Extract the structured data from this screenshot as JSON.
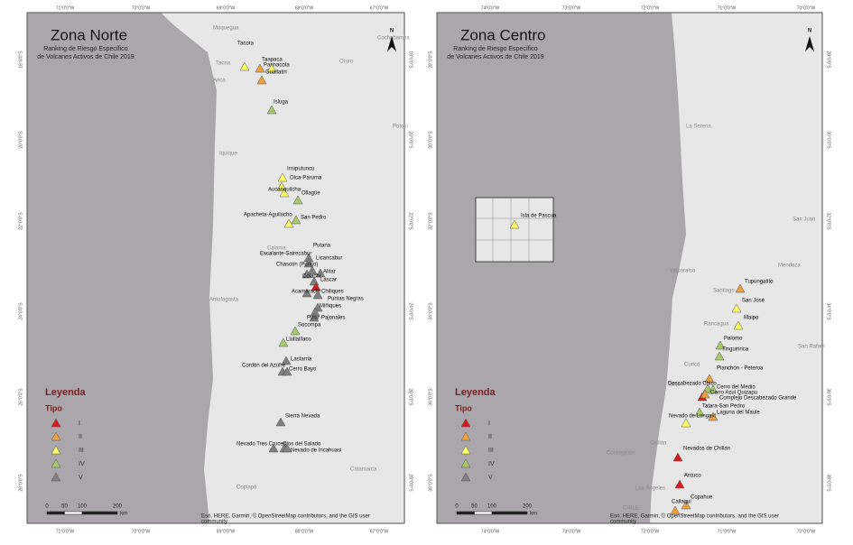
{
  "panels": [
    {
      "title": "Zona Norte",
      "subtitle": [
        "Ranking de Riesgo Específico",
        "de Volcanes Activos de Chile 2019"
      ],
      "north": "N",
      "legend": {
        "title": "Leyenda",
        "subtitle": "Tipo",
        "items": [
          {
            "label": "I",
            "color": "#d7191c"
          },
          {
            "label": "II",
            "color": "#f0a03c"
          },
          {
            "label": "III",
            "color": "#ffff66"
          },
          {
            "label": "IV",
            "color": "#a6c96a"
          },
          {
            "label": "V",
            "color": "#808080"
          }
        ]
      },
      "scale": {
        "ticks": [
          0,
          50,
          100,
          200
        ],
        "unit": "km"
      },
      "attribution": [
        "Esri, HERE, Garmin, © OpenStreetMap contributors, and the GIS user",
        "community"
      ],
      "top_ticks": [
        "71°0'0\"W",
        "70°0'0\"W",
        "69°0'0\"W",
        "68°0'0\"W",
        "67°0'0\"W"
      ],
      "side_ticks": [
        "18°0'0\"S",
        "20°0'0\"S",
        "22°0'0\"S",
        "24°0'0\"S",
        "26°0'0\"S",
        "28°0'0\"S"
      ],
      "places": [
        "Moquegua",
        "Tacna",
        "Arica",
        "Oruro",
        "Cochabamba",
        "Potosí",
        "Iquique",
        "Calama",
        "Antofagasta",
        "Copiapó",
        "Catamarca"
      ],
      "volcanoes": [
        {
          "name": "Tacora",
          "tipo": "III"
        },
        {
          "name": "Taapaca",
          "tipo": "III"
        },
        {
          "name": "Parinacota",
          "tipo": "II"
        },
        {
          "name": "Guallatiri",
          "tipo": "II"
        },
        {
          "name": "Isluga",
          "tipo": "IV"
        },
        {
          "name": "Irruputuncu",
          "tipo": "III"
        },
        {
          "name": "Olca-Paruma",
          "tipo": "III"
        },
        {
          "name": "Aucanquilcha",
          "tipo": "III"
        },
        {
          "name": "Ollagüe",
          "tipo": "IV"
        },
        {
          "name": "Apacheta-Aguilucho",
          "tipo": "III"
        },
        {
          "name": "San Pedro",
          "tipo": "IV"
        },
        {
          "name": "Putana",
          "tipo": "V"
        },
        {
          "name": "Escalante-Sairecabur",
          "tipo": "V"
        },
        {
          "name": "Licancabur",
          "tipo": "V"
        },
        {
          "name": "Chascón (Purico)",
          "tipo": "V"
        },
        {
          "name": "Alitar",
          "tipo": "V"
        },
        {
          "name": "Colachi",
          "tipo": "V"
        },
        {
          "name": "Láscar",
          "tipo": "I"
        },
        {
          "name": "Acamarachi",
          "tipo": "V"
        },
        {
          "name": "Chiliques",
          "tipo": "V"
        },
        {
          "name": "Puntas Negras",
          "tipo": "V"
        },
        {
          "name": "Miñiques",
          "tipo": "V"
        },
        {
          "name": "Pular-Pajonales",
          "tipo": "V"
        },
        {
          "name": "Socompa",
          "tipo": "IV"
        },
        {
          "name": "Llullaillaco",
          "tipo": "IV"
        },
        {
          "name": "Lastarria",
          "tipo": "V"
        },
        {
          "name": "Cordón del Azufre",
          "tipo": "V"
        },
        {
          "name": "Cerro Bayo",
          "tipo": "V"
        },
        {
          "name": "Sierra Nevada",
          "tipo": "V"
        },
        {
          "name": "Nevado Tres Cruces",
          "tipo": "V"
        },
        {
          "name": "Ojos del Salado",
          "tipo": "V"
        },
        {
          "name": "Nevado de Incahuasi",
          "tipo": "V"
        }
      ]
    },
    {
      "title": "Zona Centro",
      "subtitle": [
        "Ranking de Riesgo Específico",
        "de Volcanes Activos de Chile 2019"
      ],
      "north": "N",
      "legend": {
        "title": "Leyenda",
        "subtitle": "Tipo",
        "items": [
          {
            "label": "I",
            "color": "#d7191c"
          },
          {
            "label": "II",
            "color": "#f0a03c"
          },
          {
            "label": "III",
            "color": "#ffff66"
          },
          {
            "label": "IV",
            "color": "#a6c96a"
          },
          {
            "label": "V",
            "color": "#808080"
          }
        ]
      },
      "scale": {
        "ticks": [
          0,
          50,
          100,
          200
        ],
        "unit": "km"
      },
      "attribution": [
        "Esri, HERE, Garmin, © OpenStreetMap contributors, and the GIS user",
        "community"
      ],
      "top_ticks": [
        "74°0'0\"W",
        "73°0'0\"W",
        "72°0'0\"W",
        "71°0'0\"W",
        "70°0'0\"W"
      ],
      "side_ticks": [
        "28°0'0\"S",
        "30°0'0\"S",
        "32°0'0\"S",
        "34°0'0\"S",
        "36°0'0\"S",
        "38°0'0\"S"
      ],
      "places": [
        "La Serena",
        "San Juan",
        "Valparaíso",
        "Santiago",
        "Mendoza",
        "Rancagua",
        "San Rafael",
        "Curicó",
        "Talca",
        "Chillán",
        "Concepción",
        "Los Ángeles",
        "CHILE"
      ],
      "volcanoes": [
        {
          "name": "Isla de Pascua",
          "tipo": "III"
        },
        {
          "name": "Tupungatito",
          "tipo": "II"
        },
        {
          "name": "San José",
          "tipo": "III"
        },
        {
          "name": "Maipo",
          "tipo": "III"
        },
        {
          "name": "Palomo",
          "tipo": "IV"
        },
        {
          "name": "Tinguiririca",
          "tipo": "IV"
        },
        {
          "name": "Planchón - Peteroa",
          "tipo": "II"
        },
        {
          "name": "Descabezado Chico",
          "tipo": "IV"
        },
        {
          "name": "Cerro del Medio",
          "tipo": "IV"
        },
        {
          "name": "Cerro Azul Quizapu",
          "tipo": "I"
        },
        {
          "name": "Complejo Descabezado Grande",
          "tipo": "II"
        },
        {
          "name": "Tatara-San Pedro",
          "tipo": "IV"
        },
        {
          "name": "Laguna del Maule",
          "tipo": "II"
        },
        {
          "name": "Nevado de Longaví",
          "tipo": "III"
        },
        {
          "name": "Nevados de Chillán",
          "tipo": "I"
        },
        {
          "name": "Antuco",
          "tipo": "I"
        },
        {
          "name": "Copahue",
          "tipo": "II"
        },
        {
          "name": "Callaqui",
          "tipo": "II"
        }
      ]
    }
  ]
}
